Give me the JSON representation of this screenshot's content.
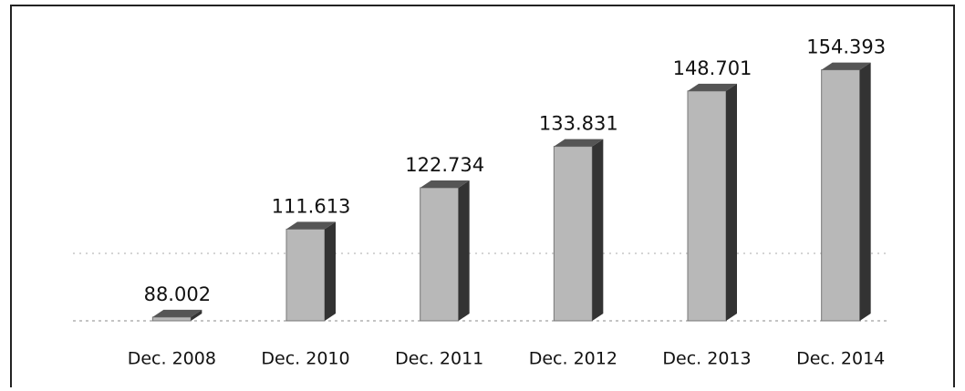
{
  "chart_data": {
    "type": "bar",
    "categories": [
      "Dec. 2008",
      "Dec. 2010",
      "Dec. 2011",
      "Dec. 2012",
      "Dec. 2013",
      "Dec. 2014"
    ],
    "values": [
      88.002,
      111.613,
      122.734,
      133.831,
      148.701,
      154.393
    ],
    "value_labels": [
      "88.002",
      "111.613",
      "122.734",
      "133.831",
      "148.701",
      "154.393"
    ],
    "color": "#b8b8b8",
    "ylim": [
      87,
      156
    ]
  }
}
